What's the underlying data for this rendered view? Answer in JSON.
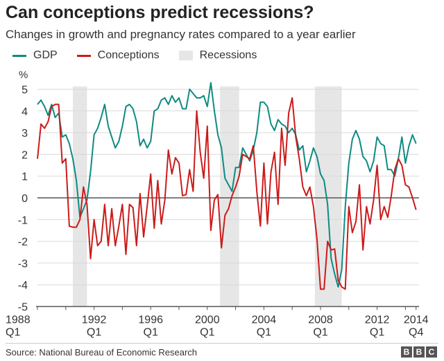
{
  "header": {
    "title": "Can conceptions predict recessions?",
    "subtitle": "Changes in growth and pregnancy rates compared to a year earlier"
  },
  "source": "Source: National Bureau of Economic Research",
  "logo": "BBC",
  "chart_data": {
    "type": "line",
    "title": "Can conceptions predict recessions?",
    "subtitle": "Changes in growth and pregnancy rates compared to a year earlier",
    "ylabel": "%",
    "ylim": [
      -5,
      5
    ],
    "yticks": [
      5,
      4,
      3,
      2,
      1,
      0,
      -1,
      -2,
      -3,
      -4,
      -5
    ],
    "x_start": "1988 Q1",
    "x_end": "2014 Q4",
    "frequency": "quarterly",
    "xticks": [
      {
        "year": 1988,
        "label": "1988",
        "sub": "Q1"
      },
      {
        "year": 1992,
        "label": "1992",
        "sub": "Q1"
      },
      {
        "year": 1996,
        "label": "1996",
        "sub": "Q1"
      },
      {
        "year": 2000,
        "label": "2000",
        "sub": "Q1"
      },
      {
        "year": 2004,
        "label": "2004",
        "sub": "Q1"
      },
      {
        "year": 2008,
        "label": "2008",
        "sub": "Q1"
      },
      {
        "year": 2012,
        "label": "2012",
        "sub": "Q1"
      },
      {
        "year": 2014.75,
        "label": "2014",
        "sub": "Q4"
      }
    ],
    "grid": true,
    "legend": "top-left",
    "recessions_label": "Recessions",
    "recession_color": "#e6e6e6",
    "recessions": [
      [
        1990.5,
        1991.5
      ],
      [
        2000.9,
        2002.25
      ],
      [
        2007.6,
        2009.5
      ]
    ],
    "series": [
      {
        "name": "GDP",
        "color": "#0e8a82",
        "values": [
          4.3,
          4.5,
          4.2,
          3.8,
          4.3,
          3.7,
          3.9,
          2.8,
          2.9,
          2.5,
          1.8,
          0.8,
          -0.9,
          -0.5,
          -0.1,
          1.2,
          2.9,
          3.2,
          3.7,
          4.3,
          3.3,
          2.8,
          2.3,
          2.6,
          3.3,
          4.2,
          4.3,
          4.1,
          3.5,
          2.4,
          2.7,
          2.3,
          2.6,
          4.0,
          4.1,
          4.5,
          4.6,
          4.3,
          4.7,
          4.4,
          4.6,
          4.1,
          4.1,
          5.0,
          4.8,
          4.6,
          4.6,
          4.7,
          4.2,
          5.3,
          4.0,
          2.9,
          2.3,
          0.9,
          0.6,
          0.3,
          1.4,
          1.4,
          2.3,
          2.0,
          1.7,
          2.2,
          3.0,
          4.4,
          4.4,
          4.2,
          3.4,
          3.1,
          3.6,
          3.4,
          3.3,
          3.0,
          3.2,
          2.9,
          2.2,
          2.4,
          1.2,
          1.7,
          2.3,
          1.9,
          1.1,
          0.8,
          -0.3,
          -2.8,
          -3.5,
          -4.1,
          -3.3,
          -0.4,
          1.6,
          2.7,
          3.1,
          2.7,
          1.9,
          1.7,
          1.2,
          1.7,
          2.8,
          2.5,
          2.4,
          1.3,
          1.3,
          1.0,
          1.8,
          2.8,
          1.6,
          2.4,
          2.9,
          2.5
        ]
      },
      {
        "name": "Conceptions",
        "color": "#cc1a1a",
        "values": [
          1.8,
          3.4,
          3.2,
          3.5,
          4.2,
          4.3,
          4.3,
          1.6,
          1.8,
          -1.3,
          -1.35,
          -1.35,
          -1.0,
          0.5,
          -0.3,
          -2.8,
          -1.0,
          -2.2,
          -2.0,
          -0.3,
          -2.2,
          -0.5,
          -2.2,
          -1.3,
          -0.3,
          -2.6,
          -0.3,
          -0.45,
          -2.2,
          0.2,
          -1.8,
          -0.4,
          1.1,
          -1.4,
          0.8,
          -1.2,
          -0.1,
          2.2,
          1.1,
          1.85,
          1.6,
          0.1,
          0.15,
          1.3,
          0.3,
          4.0,
          2.1,
          0.9,
          3.3,
          -1.5,
          -0.1,
          0.15,
          -2.3,
          -0.8,
          -0.5,
          0.1,
          0.5,
          1.0,
          2.0,
          1.9,
          1.8,
          2.4,
          0.3,
          -1.3,
          1.6,
          -1.2,
          1.2,
          2.1,
          -0.3,
          3.2,
          1.5,
          3.9,
          4.6,
          2.8,
          1.8,
          0.5,
          0.1,
          0.5,
          -0.4,
          -1.9,
          -4.2,
          -4.2,
          -2.0,
          -2.4,
          -2.35,
          -3.8,
          -4.1,
          -4.2,
          -0.4,
          -1.6,
          -1.1,
          0.6,
          -2.4,
          -0.4,
          -1.2,
          -0.1,
          1.5,
          -1.0,
          -0.4,
          -0.9,
          0.1,
          1.3,
          1.8,
          1.5,
          0.6,
          0.5,
          0.0,
          -0.55
        ]
      }
    ]
  }
}
